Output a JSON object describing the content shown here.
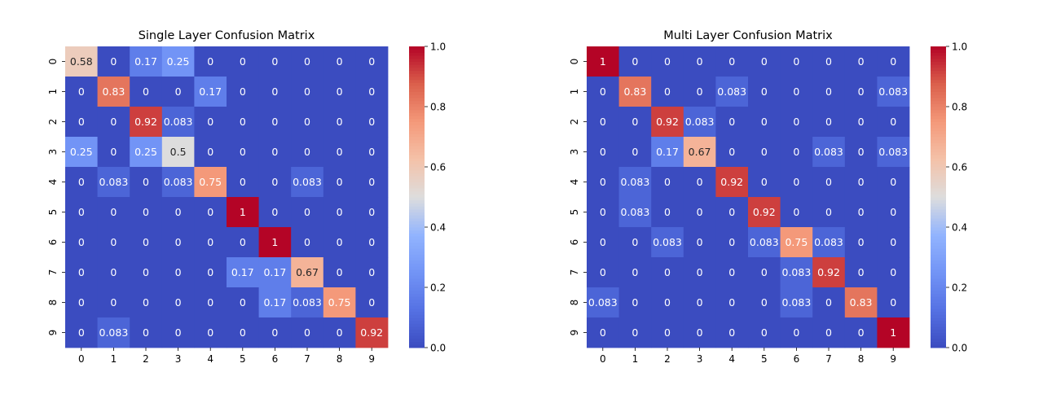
{
  "chart_data": [
    {
      "type": "heatmap",
      "title": "Single Layer Confusion Matrix",
      "xlabel": "",
      "ylabel": "",
      "x_categories": [
        "0",
        "1",
        "2",
        "3",
        "4",
        "5",
        "6",
        "7",
        "8",
        "9"
      ],
      "y_categories": [
        "0",
        "1",
        "2",
        "3",
        "4",
        "5",
        "6",
        "7",
        "8",
        "9"
      ],
      "values": [
        [
          0.58,
          0,
          0.17,
          0.25,
          0,
          0,
          0,
          0,
          0,
          0
        ],
        [
          0,
          0.83,
          0,
          0,
          0.17,
          0,
          0,
          0,
          0,
          0
        ],
        [
          0,
          0,
          0.92,
          0.083,
          0,
          0,
          0,
          0,
          0,
          0
        ],
        [
          0.25,
          0,
          0.25,
          0.5,
          0,
          0,
          0,
          0,
          0,
          0
        ],
        [
          0,
          0.083,
          0,
          0.083,
          0.75,
          0,
          0,
          0.083,
          0,
          0
        ],
        [
          0,
          0,
          0,
          0,
          0,
          1,
          0,
          0,
          0,
          0
        ],
        [
          0,
          0,
          0,
          0,
          0,
          0,
          1,
          0,
          0,
          0
        ],
        [
          0,
          0,
          0,
          0,
          0,
          0.17,
          0.17,
          0.67,
          0,
          0
        ],
        [
          0,
          0,
          0,
          0,
          0,
          0,
          0.17,
          0.083,
          0.75,
          0
        ],
        [
          0,
          0.083,
          0,
          0,
          0,
          0,
          0,
          0,
          0,
          0.92
        ]
      ],
      "colorbar": {
        "colormap": "coolwarm",
        "range": [
          0,
          1
        ],
        "ticks": [
          0,
          0.2,
          0.4,
          0.6,
          0.8,
          1
        ],
        "tick_labels": [
          "0.0",
          "0.2",
          "0.4",
          "0.6",
          "0.8",
          "1.0"
        ]
      }
    },
    {
      "type": "heatmap",
      "title": "Multi Layer Confusion Matrix",
      "xlabel": "",
      "ylabel": "",
      "x_categories": [
        "0",
        "1",
        "2",
        "3",
        "4",
        "5",
        "6",
        "7",
        "8",
        "9"
      ],
      "y_categories": [
        "0",
        "1",
        "2",
        "3",
        "4",
        "5",
        "6",
        "7",
        "8",
        "9"
      ],
      "values": [
        [
          1,
          0,
          0,
          0,
          0,
          0,
          0,
          0,
          0,
          0
        ],
        [
          0,
          0.83,
          0,
          0,
          0.083,
          0,
          0,
          0,
          0,
          0.083
        ],
        [
          0,
          0,
          0.92,
          0.083,
          0,
          0,
          0,
          0,
          0,
          0
        ],
        [
          0,
          0,
          0.17,
          0.67,
          0,
          0,
          0,
          0.083,
          0,
          0.083
        ],
        [
          0,
          0.083,
          0,
          0,
          0.92,
          0,
          0,
          0,
          0,
          0
        ],
        [
          0,
          0.083,
          0,
          0,
          0,
          0.92,
          0,
          0,
          0,
          0
        ],
        [
          0,
          0,
          0.083,
          0,
          0,
          0.083,
          0.75,
          0.083,
          0,
          0
        ],
        [
          0,
          0,
          0,
          0,
          0,
          0,
          0.083,
          0.92,
          0,
          0
        ],
        [
          0.083,
          0,
          0,
          0,
          0,
          0,
          0.083,
          0,
          0.83,
          0
        ],
        [
          0,
          0,
          0,
          0,
          0,
          0,
          0,
          0,
          0,
          1
        ]
      ],
      "colorbar": {
        "colormap": "coolwarm",
        "range": [
          0,
          1
        ],
        "ticks": [
          0,
          0.2,
          0.4,
          0.6,
          0.8,
          1
        ],
        "tick_labels": [
          "0.0",
          "0.2",
          "0.4",
          "0.6",
          "0.8",
          "1.0"
        ]
      }
    }
  ]
}
